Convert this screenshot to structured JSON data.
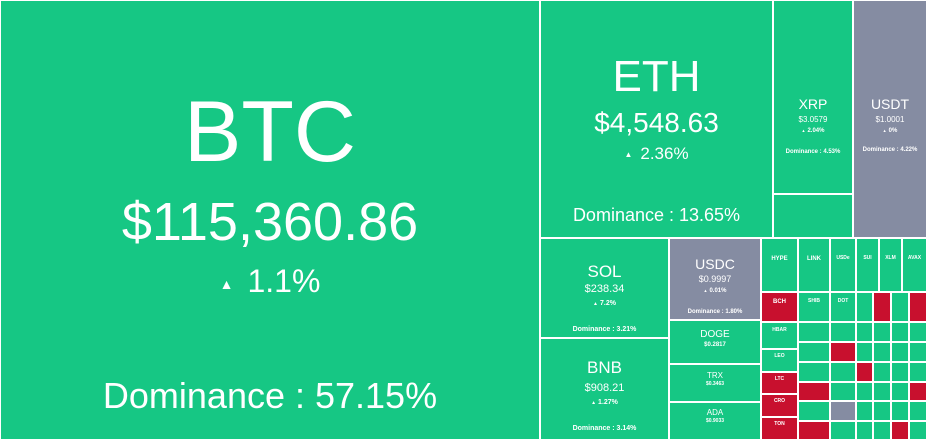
{
  "colors": {
    "up": "#16c784",
    "down": "#c8102e",
    "stable": "#858ca2"
  },
  "up_arrow": "▲",
  "major": {
    "btc": {
      "symbol": "BTC",
      "price": "$115,360.86",
      "change": "1.1%",
      "dominance": "Dominance : 57.15%"
    },
    "eth": {
      "symbol": "ETH",
      "price": "$4,548.63",
      "change": "2.36%",
      "dominance": "Dominance : 13.65%"
    },
    "xrp": {
      "symbol": "XRP",
      "price": "$3.0579",
      "change": "2.04%",
      "dominance": "Dominance : 4.53%"
    },
    "usdt": {
      "symbol": "USDT",
      "price": "$1.0001",
      "change": "0%",
      "dominance": "Dominance : 4.22%"
    },
    "sol": {
      "symbol": "SOL",
      "price": "$238.34",
      "change": "7.2%",
      "dominance": "Dominance : 3.21%"
    },
    "usdc": {
      "symbol": "USDC",
      "price": "$0.9997",
      "change": "0.01%",
      "dominance": "Dominance : 1.80%"
    },
    "bnb": {
      "symbol": "BNB",
      "price": "$908.21",
      "change": "1.27%",
      "dominance": "Dominance : 3.14%"
    },
    "doge": {
      "symbol": "DOGE",
      "price": "$0.2817"
    },
    "trx": {
      "symbol": "TRX",
      "price": "$0.3463"
    },
    "ada": {
      "symbol": "ADA",
      "price": "$0.9033"
    }
  },
  "small_labels": {
    "hype": "HYPE",
    "link": "LINK",
    "usde": "USDe",
    "sui": "SUI",
    "xlm": "XLM",
    "avax": "AVAX",
    "bch": "BCH",
    "shib": "SHIB",
    "dot": "DOT",
    "hbar": "HBAR",
    "ltc": "LTC",
    "leo": "LEO",
    "cro": "CRO",
    "ton": "TON"
  }
}
